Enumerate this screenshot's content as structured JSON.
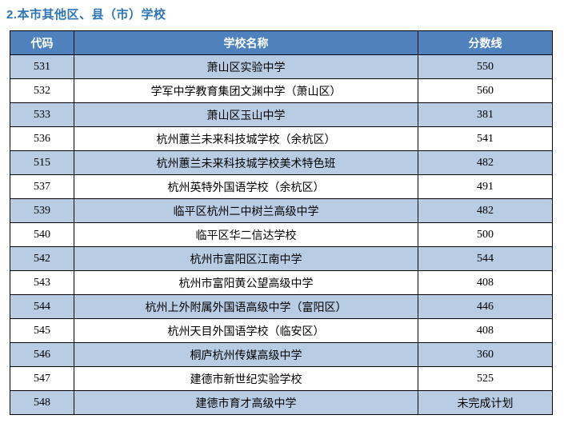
{
  "page_title": "2.本市其他区、县（市）学校",
  "colors": {
    "title_text": "#2E75B6",
    "header_bg": "#4F81BD",
    "header_text": "#FFFFFF",
    "row_alt_bg": "#B8CCE4",
    "row_bg": "#FFFFFF",
    "border": "#000000"
  },
  "table": {
    "columns": {
      "code": "代码",
      "school": "学校名称",
      "score": "分数线"
    },
    "rows": [
      {
        "code": "531",
        "school": "萧山区实验中学",
        "score": "550"
      },
      {
        "code": "532",
        "school": "学军中学教育集团文渊中学（萧山区）",
        "score": "560"
      },
      {
        "code": "533",
        "school": "萧山区玉山中学",
        "score": "381"
      },
      {
        "code": "536",
        "school": "杭州蕙兰未来科技城学校（余杭区）",
        "score": "541"
      },
      {
        "code": "515",
        "school": "杭州蕙兰未来科技城学校美术特色班",
        "score": "482"
      },
      {
        "code": "537",
        "school": "杭州英特外国语学校（余杭区）",
        "score": "491"
      },
      {
        "code": "539",
        "school": "临平区杭州二中树兰高级中学",
        "score": "482"
      },
      {
        "code": "540",
        "school": "临平区华二信达学校",
        "score": "500"
      },
      {
        "code": "542",
        "school": "杭州市富阳区江南中学",
        "score": "544"
      },
      {
        "code": "543",
        "school": "杭州市富阳黄公望高级中学",
        "score": "408"
      },
      {
        "code": "544",
        "school": "杭州上外附属外国语高级中学（富阳区）",
        "score": "446"
      },
      {
        "code": "545",
        "school": "杭州天目外国语学校（临安区）",
        "score": "408"
      },
      {
        "code": "546",
        "school": "桐庐杭州传媒高级中学",
        "score": "360"
      },
      {
        "code": "547",
        "school": "建德市新世纪实验学校",
        "score": "525"
      },
      {
        "code": "548",
        "school": "建德市育才高级中学",
        "score": "未完成计划"
      }
    ]
  }
}
